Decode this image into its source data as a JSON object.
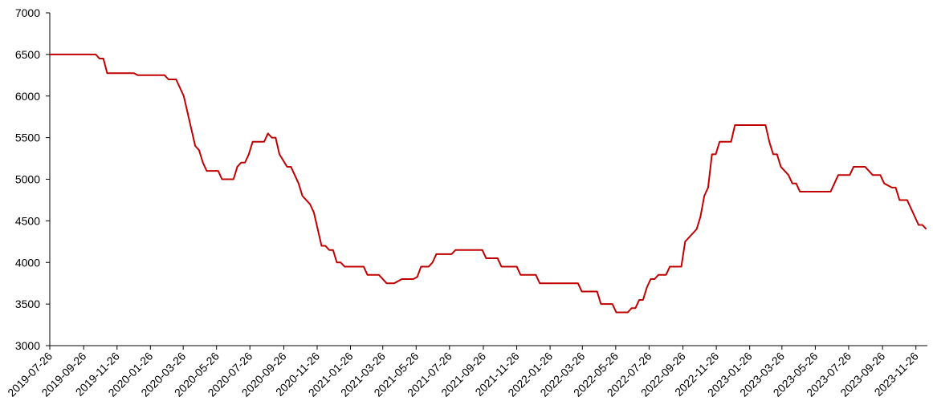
{
  "chart_data": {
    "type": "line",
    "x": [
      "2019-07-26",
      "2019-10-18",
      "2019-10-25",
      "2019-11-01",
      "2019-11-08",
      "2019-12-27",
      "2020-01-03",
      "2020-02-21",
      "2020-02-28",
      "2020-03-13",
      "2020-03-27",
      "2020-04-17",
      "2020-04-24",
      "2020-05-01",
      "2020-05-08",
      "2020-05-29",
      "2020-06-05",
      "2020-06-26",
      "2020-07-03",
      "2020-07-10",
      "2020-07-17",
      "2020-07-24",
      "2020-07-31",
      "2020-08-21",
      "2020-08-28",
      "2020-09-04",
      "2020-09-11",
      "2020-09-18",
      "2020-10-02",
      "2020-10-09",
      "2020-10-23",
      "2020-10-30",
      "2020-11-13",
      "2020-11-20",
      "2020-12-04",
      "2020-12-11",
      "2020-12-18",
      "2020-12-25",
      "2021-01-01",
      "2021-01-08",
      "2021-01-15",
      "2021-02-19",
      "2021-02-26",
      "2021-03-19",
      "2021-04-02",
      "2021-04-16",
      "2021-04-30",
      "2021-05-21",
      "2021-05-28",
      "2021-06-04",
      "2021-06-18",
      "2021-06-25",
      "2021-07-02",
      "2021-07-30",
      "2021-08-06",
      "2021-09-24",
      "2021-10-01",
      "2021-10-22",
      "2021-10-29",
      "2021-11-26",
      "2021-12-03",
      "2021-12-31",
      "2022-01-07",
      "2022-03-18",
      "2022-03-25",
      "2022-04-22",
      "2022-04-29",
      "2022-05-20",
      "2022-05-27",
      "2022-06-17",
      "2022-06-24",
      "2022-07-01",
      "2022-07-08",
      "2022-07-15",
      "2022-07-22",
      "2022-07-29",
      "2022-08-05",
      "2022-08-12",
      "2022-08-26",
      "2022-09-02",
      "2022-09-23",
      "2022-09-30",
      "2022-10-07",
      "2022-10-21",
      "2022-10-28",
      "2022-11-04",
      "2022-11-11",
      "2022-11-18",
      "2022-11-25",
      "2022-12-02",
      "2022-12-23",
      "2022-12-30",
      "2023-02-24",
      "2023-03-03",
      "2023-03-10",
      "2023-03-17",
      "2023-03-24",
      "2023-04-07",
      "2023-04-14",
      "2023-04-21",
      "2023-04-28",
      "2023-06-23",
      "2023-06-30",
      "2023-07-07",
      "2023-07-28",
      "2023-08-04",
      "2023-08-25",
      "2023-09-08",
      "2023-09-22",
      "2023-09-29",
      "2023-10-13",
      "2023-10-20",
      "2023-10-27",
      "2023-11-10",
      "2023-12-01",
      "2023-12-08",
      "2023-12-15"
    ],
    "series": [
      {
        "color": "#c00000",
        "values": [
          6500,
          6500,
          6450,
          6450,
          6275,
          6275,
          6250,
          6250,
          6200,
          6200,
          6000,
          5400,
          5350,
          5200,
          5100,
          5100,
          5000,
          5000,
          5150,
          5200,
          5200,
          5300,
          5450,
          5450,
          5550,
          5500,
          5500,
          5300,
          5150,
          5150,
          4950,
          4800,
          4700,
          4600,
          4200,
          4200,
          4150,
          4150,
          4000,
          4000,
          3950,
          3950,
          3850,
          3850,
          3750,
          3750,
          3800,
          3800,
          3825,
          3950,
          3950,
          4000,
          4100,
          4100,
          4150,
          4150,
          4050,
          4050,
          3950,
          3950,
          3850,
          3850,
          3750,
          3750,
          3650,
          3650,
          3500,
          3500,
          3400,
          3400,
          3450,
          3450,
          3550,
          3550,
          3700,
          3800,
          3800,
          3850,
          3850,
          3950,
          3950,
          4250,
          4300,
          4400,
          4550,
          4800,
          4900,
          5300,
          5300,
          5450,
          5450,
          5650,
          5650,
          5450,
          5300,
          5300,
          5150,
          5050,
          4950,
          4950,
          4850,
          4850,
          4950,
          5050,
          5050,
          5150,
          5150,
          5050,
          5050,
          4950,
          4900,
          4900,
          4750,
          4750,
          4450,
          4450,
          4400
        ]
      }
    ],
    "xlim": [
      "2019-07-26",
      "2023-12-17"
    ],
    "xticks": [
      "2019-07-26",
      "2019-09-26",
      "2019-11-26",
      "2020-01-26",
      "2020-03-26",
      "2020-05-26",
      "2020-07-26",
      "2020-09-26",
      "2020-11-26",
      "2021-01-26",
      "2021-03-26",
      "2021-05-26",
      "2021-07-26",
      "2021-09-26",
      "2021-11-26",
      "2022-01-26",
      "2022-03-26",
      "2022-05-26",
      "2022-07-26",
      "2022-09-26",
      "2022-11-26",
      "2023-01-26",
      "2023-03-26",
      "2023-05-26",
      "2023-07-26",
      "2023-09-26",
      "2023-11-26"
    ],
    "ylim": [
      3000,
      7000
    ],
    "yticks": [
      3000,
      3500,
      4000,
      4500,
      5000,
      5500,
      6000,
      6500,
      7000
    ],
    "grid": false
  }
}
